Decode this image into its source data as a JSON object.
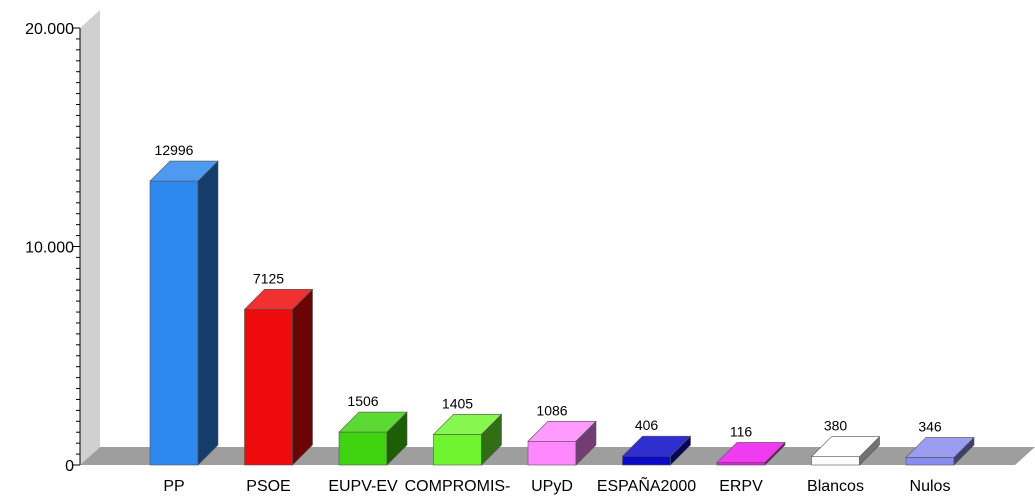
{
  "chart_data": {
    "type": "bar",
    "categories": [
      "PP",
      "PSOE",
      "EUPV-EV",
      "COMPROMIS-",
      "UPyD",
      "ESPAÑA2000",
      "ERPV",
      "Blancos",
      "Nulos"
    ],
    "values": [
      12996,
      7125,
      1506,
      1405,
      1086,
      406,
      116,
      380,
      346
    ],
    "data_labels": [
      "12996",
      "7125",
      "1506",
      "1405",
      "1086",
      "406",
      "116",
      "380",
      "346"
    ],
    "colors": [
      "#2f88ee",
      "#ee0b0b",
      "#3fd20f",
      "#6ff52f",
      "#ff88ff",
      "#0a0ac8",
      "#ee18ee",
      "#ffffff",
      "#8a8cee"
    ],
    "y_ticks": [
      {
        "value": 0,
        "label": "0"
      },
      {
        "value": 10000,
        "label": "10.000"
      },
      {
        "value": 20000,
        "label": "20.000"
      }
    ],
    "ylim": [
      0,
      20000
    ],
    "grid": false,
    "legend": false
  }
}
